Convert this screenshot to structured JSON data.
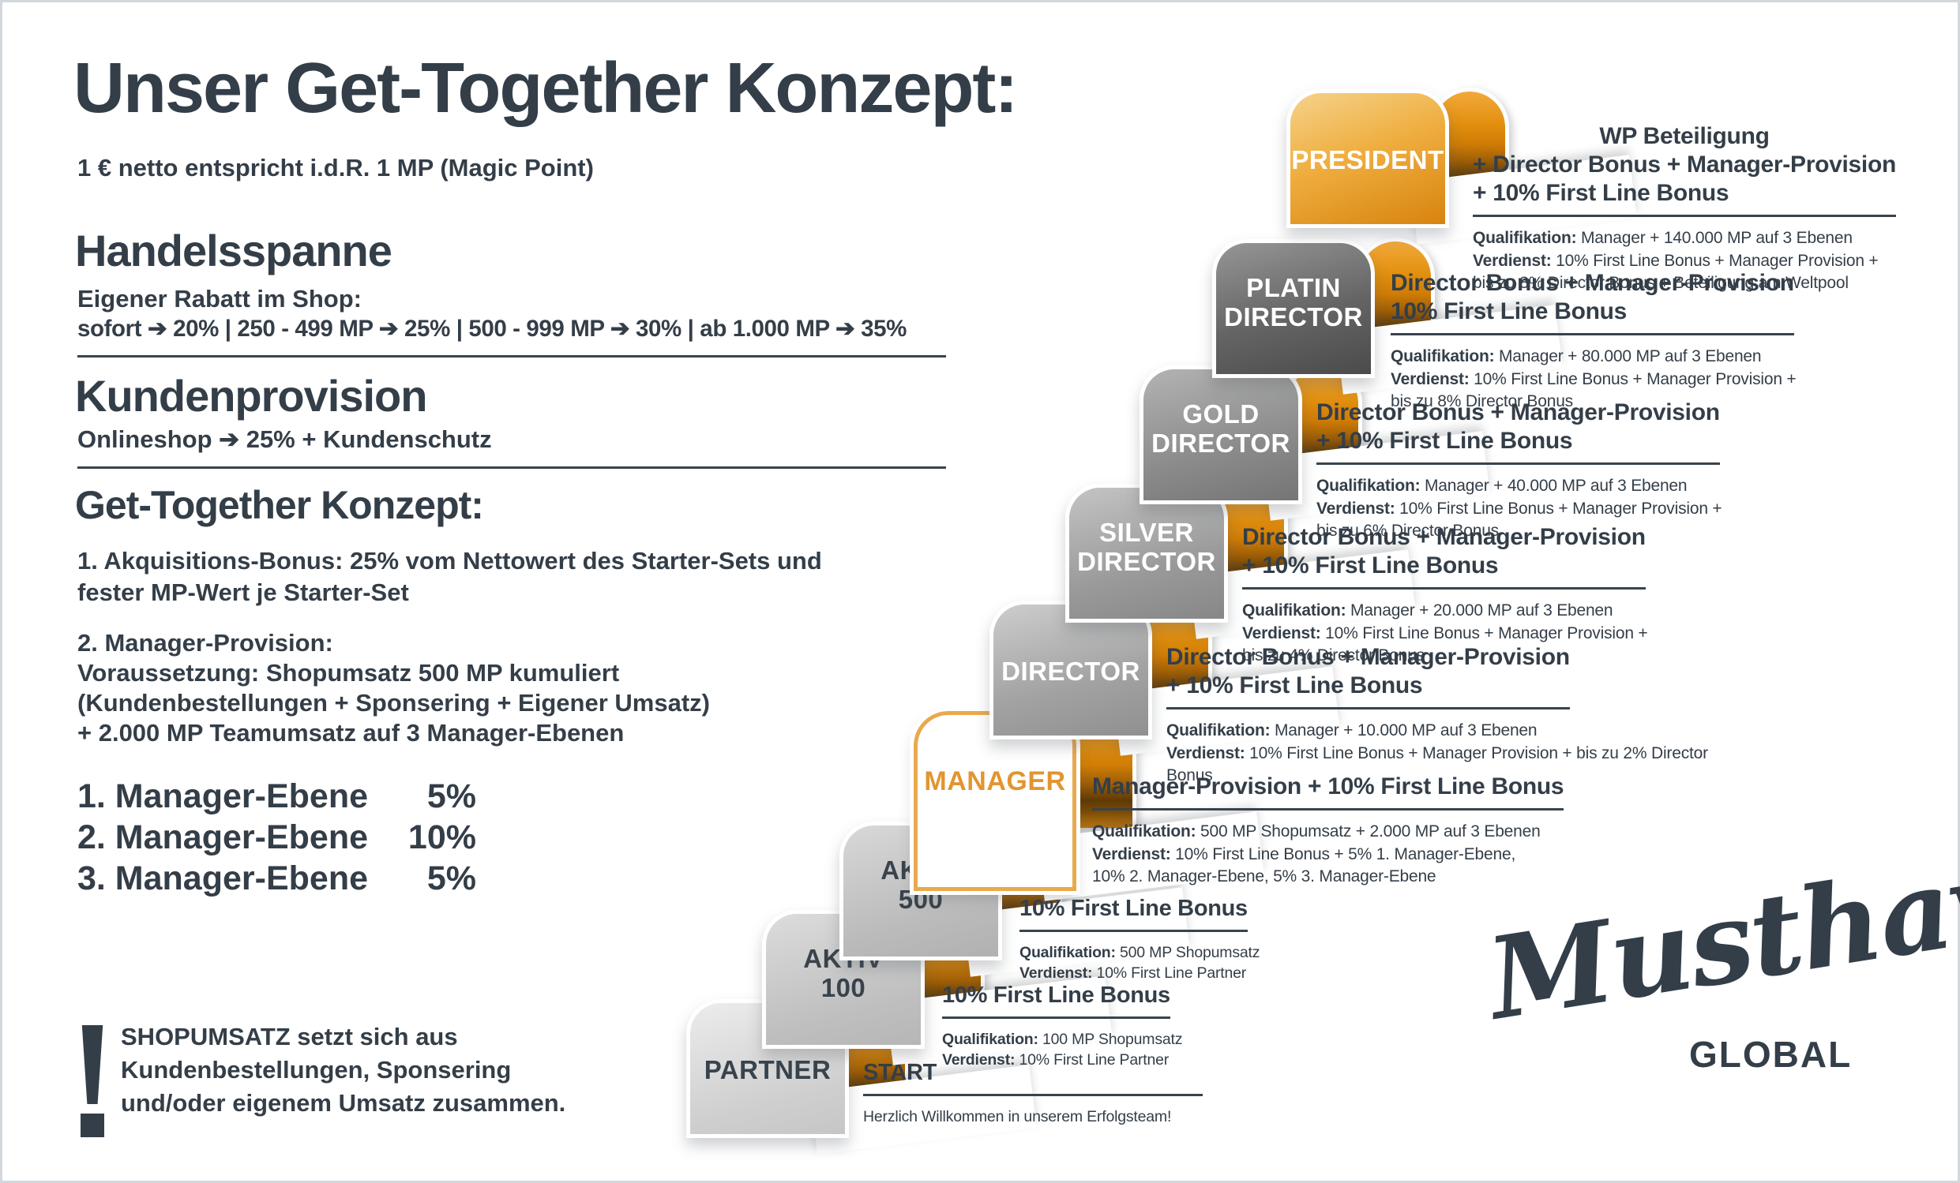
{
  "header": {
    "title": "Unser Get-Together Konzept:",
    "subtitle": "1 € netto entspricht i.d.R. 1 MP (Magic Point)"
  },
  "sections": {
    "handelsspanne": {
      "heading": "Handelsspanne",
      "line1": "Eigener Rabatt im Shop:",
      "line2": "sofort ➔ 20% | 250 - 499 MP ➔ 25% | 500 - 999 MP ➔ 30% | ab 1.000 MP ➔ 35%"
    },
    "kundenprovision": {
      "heading": "Kundenprovision",
      "line1": "Onlineshop ➔ 25% + Kundenschutz"
    },
    "konzept": {
      "heading": "Get-Together Konzept:",
      "point1_line1": "1. Akquisitions-Bonus: 25% vom Nettowert des Starter-Sets und",
      "point1_line2": "fester MP-Wert je Starter-Set",
      "point2_line1": "2. Manager-Provision:",
      "point2_line2": "Voraussetzung: Shopumsatz 500 MP kumuliert",
      "point2_line3": "(Kundenbestellungen + Sponsering + Eigener Umsatz)",
      "point2_line4": "+ 2.000 MP Teamumsatz auf 3 Manager-Ebenen"
    },
    "ebenen": [
      {
        "label": "1. Manager-Ebene",
        "value": "5%"
      },
      {
        "label": "2. Manager-Ebene",
        "value": "10%"
      },
      {
        "label": "3. Manager-Ebene",
        "value": "5%"
      }
    ],
    "note": {
      "lines": [
        "SHOPUMSATZ setzt sich aus",
        "Kundenbestellungen, Sponsering",
        "und/oder eigenem Umsatz zusammen."
      ]
    }
  },
  "ladder": {
    "steps": [
      {
        "id": "partner",
        "label": [
          "PARTNER"
        ],
        "small": true,
        "wide_rule": true,
        "title": [
          "START"
        ],
        "details": [
          {
            "t": "Herzlich Willkommen in unserem Erfolgsteam!"
          }
        ]
      },
      {
        "id": "aktiv100",
        "label": [
          "AKTIV",
          "100"
        ],
        "small": true,
        "title": [
          "10% First Line Bonus"
        ],
        "details": [
          {
            "b": "Qualifikation:",
            "t": "100 MP Shopumsatz"
          },
          {
            "b": "Verdienst:",
            "t": "10% First Line Partner"
          }
        ]
      },
      {
        "id": "aktiv500",
        "label": [
          "AKTIV",
          "500"
        ],
        "small": true,
        "title": [
          "10% First Line Bonus"
        ],
        "details": [
          {
            "b": "Qualifikation:",
            "t": "500 MP Shopumsatz"
          },
          {
            "b": "Verdienst:",
            "t": "10% First Line Partner"
          }
        ]
      },
      {
        "id": "manager",
        "label": [
          "MANAGER"
        ],
        "title": [
          "Manager-Provision + 10% First Line Bonus"
        ],
        "details": [
          {
            "b": "Qualifikation:",
            "t": "500 MP Shopumsatz + 2.000 MP auf 3 Ebenen"
          },
          {
            "b": "Verdienst:",
            "t": "10% First Line Bonus + 5% 1. Manager-Ebene,"
          },
          {
            "t": "10% 2. Manager-Ebene, 5% 3. Manager-Ebene"
          }
        ]
      },
      {
        "id": "director",
        "label": [
          "DIRECTOR"
        ],
        "title": [
          "Director Bonus + Manager-Provision",
          "+ 10% First Line Bonus"
        ],
        "details": [
          {
            "b": "Qualifikation:",
            "t": "Manager + 10.000 MP auf 3 Ebenen"
          },
          {
            "b": "Verdienst:",
            "t": "10% First Line Bonus + Manager Provision + bis zu 2% Director Bonus"
          }
        ]
      },
      {
        "id": "silver",
        "label": [
          "SILVER",
          "DIRECTOR"
        ],
        "title": [
          "Director Bonus + Manager-Provision",
          "+ 10% First Line Bonus"
        ],
        "details": [
          {
            "b": "Qualifikation:",
            "t": "Manager + 20.000 MP auf 3 Ebenen"
          },
          {
            "b": "Verdienst:",
            "t": "10% First Line Bonus + Manager Provision +"
          },
          {
            "t": "bis zu 4% Director Bonus"
          }
        ]
      },
      {
        "id": "gold",
        "label": [
          "GOLD",
          "DIRECTOR"
        ],
        "title": [
          "Director Bonus + Manager-Provision",
          "+ 10% First Line Bonus"
        ],
        "details": [
          {
            "b": "Qualifikation:",
            "t": "Manager + 40.000 MP auf 3 Ebenen"
          },
          {
            "b": "Verdienst:",
            "t": "10% First Line Bonus + Manager Provision +"
          },
          {
            "t": "bis zu 6% Director Bonus"
          }
        ]
      },
      {
        "id": "platin",
        "label": [
          "PLATIN",
          "DIRECTOR"
        ],
        "title": [
          "Director Bonus + Manager-Provision",
          "10% First Line Bonus"
        ],
        "details": [
          {
            "b": "Qualifikation:",
            "t": "Manager + 80.000 MP auf 3 Ebenen"
          },
          {
            "b": "Verdienst:",
            "t": "10% First Line Bonus + Manager Provision +"
          },
          {
            "t": "bis zu 8% Director Bonus"
          }
        ]
      },
      {
        "id": "president",
        "label": [
          "PRESIDENT"
        ],
        "center_first_title": true,
        "title": [
          "WP Beteiligung",
          "+ Director Bonus + Manager-Provision",
          "+ 10% First Line Bonus"
        ],
        "details": [
          {
            "b": "Qualifikation:",
            "t": "Manager + 140.000 MP auf 3 Ebenen"
          },
          {
            "b": "Verdienst:",
            "t": "10% First Line Bonus + Manager Provision +"
          },
          {
            "t": "bis zu 8% Director Bonus + Beteiligung am Weltpool"
          }
        ]
      }
    ]
  },
  "logo": {
    "script": "Musthave",
    "caption": "GLOBAL"
  },
  "colors": {
    "dark_text": "#343e48",
    "accent_orange": "#e0921a",
    "president_gold": "#efae3f",
    "platin_gray": "#5a5a5a",
    "manager_label_orange": "#e2952f",
    "light_gray_step": "#cccccc"
  }
}
